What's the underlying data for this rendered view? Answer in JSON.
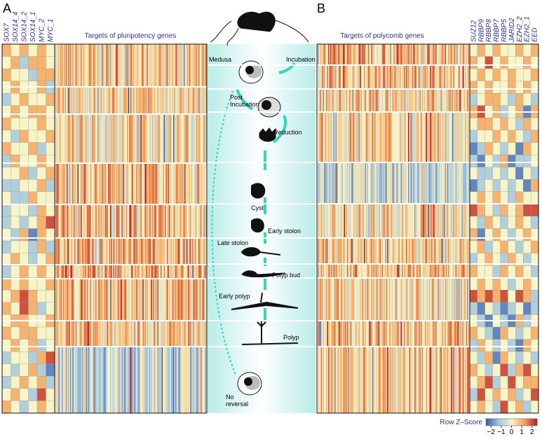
{
  "panel_labels": [
    "A",
    "B"
  ],
  "left": {
    "title": "Targets of pluripotency genes",
    "gene_columns": [
      "SOX7",
      "SOX14_4",
      "SOX14_2",
      "SOX14_1",
      "MYC_2",
      "MYC_1"
    ],
    "values": [
      [
        1,
        0,
        1,
        0,
        1,
        0
      ],
      [
        0,
        1,
        -1,
        1,
        1,
        0
      ],
      [
        1,
        0,
        0,
        -1,
        1,
        1
      ],
      [
        0,
        1,
        0,
        0,
        1,
        -1
      ],
      [
        -1,
        0,
        1,
        0,
        0,
        1
      ],
      [
        0,
        1,
        0,
        1,
        1,
        0
      ],
      [
        1,
        0,
        0,
        0,
        1,
        0
      ],
      [
        0,
        -1,
        1,
        0,
        0,
        1
      ],
      [
        1,
        0,
        0,
        1,
        -1,
        0
      ],
      [
        -1,
        1,
        0,
        0,
        1,
        0
      ],
      [
        0,
        0,
        1,
        -1,
        0,
        1
      ],
      [
        -1,
        -1,
        0,
        0,
        1,
        -1
      ],
      [
        0,
        -1,
        -1,
        1,
        0,
        0
      ],
      [
        -1,
        0,
        0,
        -1,
        1,
        0
      ],
      [
        -1,
        0,
        -1,
        0,
        1,
        2
      ],
      [
        0,
        -1,
        1,
        -2,
        1,
        0
      ],
      [
        -1,
        0,
        0,
        -1,
        1,
        -1
      ],
      [
        0,
        1,
        0,
        -1,
        0,
        1
      ],
      [
        -1,
        0,
        1,
        0,
        1,
        0
      ],
      [
        1,
        0,
        1,
        0,
        0,
        1
      ],
      [
        0,
        1,
        2,
        1,
        0,
        0
      ],
      [
        1,
        0,
        2,
        1,
        -1,
        0
      ],
      [
        0,
        1,
        1,
        0,
        0,
        1
      ],
      [
        1,
        0,
        1,
        1,
        0,
        0
      ],
      [
        0,
        1,
        0,
        1,
        -1,
        0
      ],
      [
        -1,
        0,
        0,
        -1,
        1,
        2
      ],
      [
        0,
        -1,
        0,
        1,
        -1,
        -2
      ],
      [
        -1,
        0,
        1,
        0,
        1,
        -1
      ],
      [
        0,
        1,
        0,
        -1,
        2,
        0
      ],
      [
        1,
        0,
        -1,
        0,
        1,
        0
      ]
    ]
  },
  "right": {
    "title": "Targets of polycomb genes",
    "gene_columns": [
      "SUZ12",
      "RBBP9",
      "RBBP8",
      "RBBP7",
      "RBBP5",
      "JARID2",
      "EZH2_2",
      "EZH2_1",
      "EED"
    ],
    "values": [
      [
        0,
        1,
        0,
        1,
        0,
        0,
        1,
        0,
        1
      ],
      [
        1,
        0,
        2,
        0,
        1,
        0,
        0,
        1,
        0
      ],
      [
        0,
        1,
        0,
        1,
        0,
        1,
        0,
        0,
        1
      ],
      [
        1,
        0,
        1,
        0,
        0,
        1,
        0,
        1,
        0
      ],
      [
        -1,
        0,
        1,
        1,
        0,
        -1,
        1,
        0,
        -1
      ],
      [
        1,
        2,
        0,
        1,
        -1,
        0,
        1,
        -2,
        1
      ],
      [
        0,
        1,
        1,
        0,
        1,
        0,
        -1,
        1,
        0
      ],
      [
        -1,
        0,
        0,
        1,
        0,
        1,
        0,
        -1,
        1
      ],
      [
        -2,
        -1,
        1,
        0,
        -1,
        0,
        -2,
        1,
        0
      ],
      [
        -1,
        -2,
        0,
        -1,
        1,
        -2,
        -1,
        -1,
        0
      ],
      [
        0,
        -1,
        -1,
        0,
        -1,
        0,
        -2,
        0,
        -1
      ],
      [
        -2,
        -1,
        0,
        -1,
        0,
        -1,
        0,
        -2,
        1
      ],
      [
        0,
        1,
        0,
        1,
        0,
        -1,
        1,
        0,
        0
      ],
      [
        2,
        1,
        0,
        -1,
        1,
        0,
        1,
        2,
        2
      ],
      [
        0,
        -1,
        1,
        0,
        -1,
        0,
        1,
        0,
        -1
      ],
      [
        1,
        -2,
        0,
        1,
        0,
        -1,
        0,
        1,
        0
      ],
      [
        0,
        1,
        -1,
        0,
        1,
        0,
        -1,
        0,
        1
      ],
      [
        -1,
        0,
        1,
        0,
        -1,
        1,
        0,
        -1,
        0
      ],
      [
        1,
        0,
        0,
        -1,
        1,
        0,
        1,
        0,
        -1
      ],
      [
        0,
        1,
        0,
        1,
        0,
        -1,
        0,
        1,
        0
      ],
      [
        2,
        1,
        2,
        1,
        2,
        0,
        2,
        1,
        -1
      ],
      [
        -1,
        -2,
        0,
        -1,
        -2,
        -1,
        0,
        -2,
        -1
      ],
      [
        0,
        -1,
        -2,
        0,
        -1,
        -2,
        1,
        -1,
        0
      ],
      [
        1,
        0,
        -1,
        -2,
        1,
        0,
        -1,
        0,
        1
      ],
      [
        -1,
        1,
        0,
        -1,
        0,
        -1,
        -2,
        1,
        0
      ],
      [
        0,
        -1,
        1,
        -2,
        1,
        0,
        -1,
        0,
        -1
      ],
      [
        1,
        0,
        -1,
        0,
        2,
        -1,
        1,
        2,
        0
      ],
      [
        0,
        1,
        2,
        -1,
        0,
        2,
        0,
        1,
        1
      ],
      [
        -1,
        2,
        0,
        1,
        0,
        1,
        -1,
        0,
        2
      ],
      [
        0,
        1,
        0,
        -1,
        2,
        0,
        1,
        -1,
        0
      ]
    ]
  },
  "stages": [
    {
      "lines": [
        "Medusa"
      ]
    },
    {
      "lines": [
        "Incubation"
      ]
    },
    {
      "lines": [
        "Post",
        "Incubation"
      ]
    },
    {
      "lines": [
        "Reduction"
      ]
    },
    {
      "lines": [
        "Cyst"
      ]
    },
    {
      "lines": [
        "Early stolon"
      ]
    },
    {
      "lines": [
        "Late stolon"
      ]
    },
    {
      "lines": [
        "Polyp bud"
      ]
    },
    {
      "lines": [
        "Early polyp"
      ]
    },
    {
      "lines": [
        "Polyp"
      ]
    },
    {
      "lines": [
        "No",
        "reversal"
      ]
    }
  ],
  "colorbar": {
    "title": "Row Z–Score",
    "lim": [
      -2.5,
      2.5
    ],
    "colors": [
      "#3f5aa8",
      "#9ec5e0",
      "#f7f5c8",
      "#f6a25a",
      "#b51d2b"
    ],
    "ticks": [
      {
        "value": -2,
        "label": "−2"
      },
      {
        "value": -1,
        "label": "−1"
      },
      0,
      1,
      2
    ]
  }
}
